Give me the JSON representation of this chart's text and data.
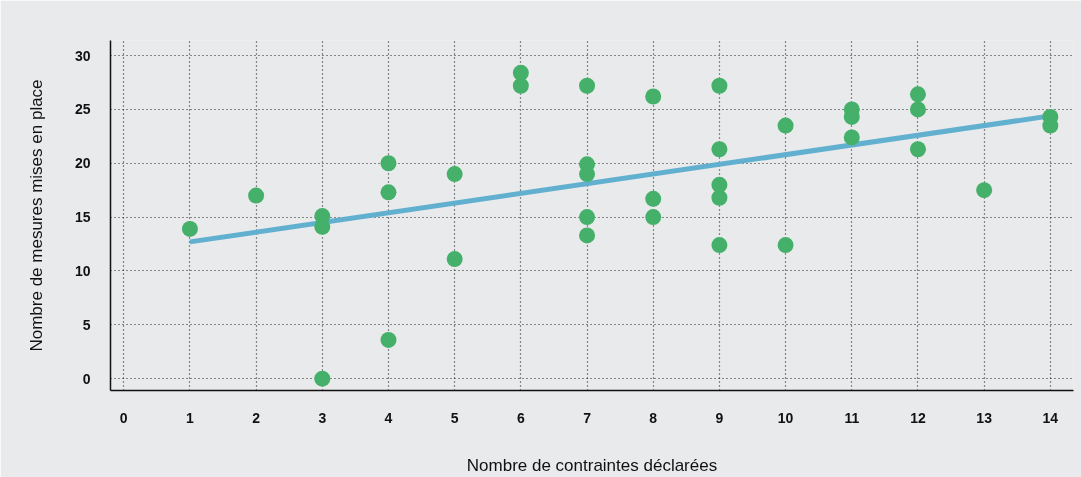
{
  "chart_data": {
    "type": "scatter",
    "xlabel": "Nombre de contraintes déclarées",
    "ylabel": "Nombre de mesures mises en place",
    "xlim": [
      -0.2,
      14.35
    ],
    "ylim": [
      -1.1,
      31.4
    ],
    "xticks": [
      0,
      1,
      2,
      3,
      4,
      5,
      6,
      7,
      8,
      9,
      10,
      11,
      12,
      13,
      14
    ],
    "yticks": [
      0,
      5,
      10,
      15,
      20,
      25,
      30
    ],
    "grid": true,
    "series": [
      {
        "marker": "circle",
        "color": "#45b06a",
        "x": [
          1,
          2,
          3,
          3,
          3,
          4,
          4,
          4,
          5,
          5,
          6,
          6,
          7,
          7,
          7,
          7,
          7,
          8,
          8,
          8,
          9,
          9,
          9,
          9,
          9,
          10,
          10,
          11,
          11,
          11,
          12,
          12,
          12,
          13,
          14,
          14
        ],
        "values": [
          13.9,
          17.0,
          15.1,
          14.1,
          0.0,
          20.0,
          17.3,
          3.6,
          19.0,
          11.1,
          28.4,
          27.2,
          27.2,
          19.9,
          19.0,
          15.0,
          13.3,
          26.2,
          16.7,
          15.0,
          27.2,
          21.3,
          18.0,
          16.8,
          12.4,
          23.5,
          12.4,
          25.0,
          24.3,
          22.4,
          26.4,
          25.0,
          21.3,
          17.5,
          24.3,
          23.5
        ]
      },
      {
        "type": "line",
        "color": "#62b0cf",
        "x": [
          1,
          14
        ],
        "values": [
          12.7,
          24.4
        ]
      }
    ]
  }
}
